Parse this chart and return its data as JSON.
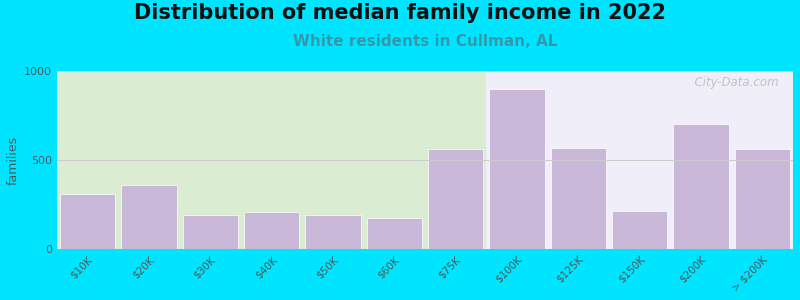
{
  "title": "Distribution of median family income in 2022",
  "subtitle": "White residents in Cullman, AL",
  "categories": [
    "$10K",
    "$20K",
    "$30K",
    "$40K",
    "$50K",
    "$60K",
    "$75K",
    "$100K",
    "$125K",
    "$150K",
    "$200K",
    "> $200K"
  ],
  "values": [
    310,
    360,
    190,
    210,
    195,
    175,
    560,
    900,
    570,
    215,
    700,
    560
  ],
  "bar_color": "#c9b8d8",
  "bar_edgecolor": "#ffffff",
  "ylabel": "families",
  "ylim": [
    0,
    1000
  ],
  "yticks": [
    0,
    500,
    1000
  ],
  "background_color": "#00e5ff",
  "plot_bg_left": "#daecd2",
  "plot_bg_right": "#f0eef8",
  "title_fontsize": 15,
  "subtitle_fontsize": 11,
  "subtitle_color": "#3399aa",
  "watermark": "  City-Data.com",
  "grid_color": "#cccccc",
  "split_index": 6.5
}
